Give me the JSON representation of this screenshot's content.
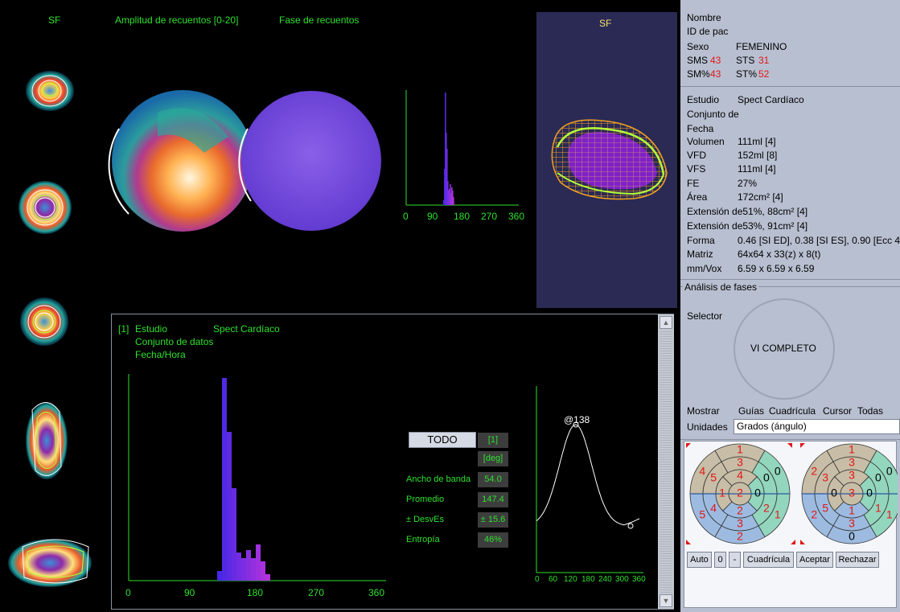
{
  "top_labels": {
    "sf": "SF",
    "amplitude": "Amplitud de recuentos [0-20]",
    "phase": "Fase de recuentos",
    "sf3d": "SF"
  },
  "top_hist": {
    "ticks": [
      "0",
      "90",
      "180",
      "270",
      "360"
    ]
  },
  "bottom_panel": {
    "study_num": "[1]",
    "study_label": "Estudio",
    "study_value": "Spect Cardíaco",
    "dataset_label": "Conjunto de datos",
    "datetime_label": "Fecha/Hora",
    "ticks": [
      "0",
      "90",
      "180",
      "270",
      "360"
    ]
  },
  "stats": {
    "todo_button": "TODO",
    "index": "[1]",
    "unit": "[deg]",
    "labels": [
      "Ancho de banda",
      "Promedio",
      "± DesvEs",
      "Entropía"
    ],
    "values": [
      "54.0",
      "147.4",
      "± 15.6",
      "46%"
    ]
  },
  "curve": {
    "peak_label": "@138",
    "ticks": [
      "0",
      "60",
      "120",
      "180",
      "240",
      "300",
      "360"
    ]
  },
  "patient": {
    "name_label": "Nombre",
    "id_label": "ID de pac",
    "sex_label": "Sexo",
    "sex_value": "FEMENINO",
    "sms_label": "SMS",
    "sms_value": "43",
    "sts_label": "STS",
    "sts_value": "31",
    "smp_label": "SM%",
    "smp_value": "43",
    "stp_label": "ST%",
    "stp_value": "52"
  },
  "study": {
    "study_label": "Estudio",
    "study_value": "Spect Cardíaco",
    "dataset_label": "Conjunto de",
    "date_label": "Fecha",
    "rows": [
      {
        "label": "Volumen",
        "value": "111ml [4]"
      },
      {
        "label": "VFD",
        "value": "152ml [8]"
      },
      {
        "label": "VFS",
        "value": "111ml [4]"
      },
      {
        "label": "FE",
        "value": "27%"
      },
      {
        "label": "Área",
        "value": "172cm² [4]"
      }
    ],
    "ext1": "Extensión de51%, 88cm² [4]",
    "ext2": "Extensión de53%, 91cm² [4]",
    "rows2": [
      {
        "label": "Forma",
        "value": "0.46 [SI ED], 0.38 [SI ES], 0.90 [Ecc 4"
      },
      {
        "label": "Matriz",
        "value": "64x64 x 33(z) x 8(t)"
      },
      {
        "label": "mm/Vox",
        "value": "6.59 x 6.59 x 6.59"
      }
    ]
  },
  "phase_analysis": {
    "title": "Análisis de fases",
    "selector_label": "Selector",
    "selector_value": "VI COMPLETO"
  },
  "options": {
    "show_label": "Mostrar",
    "guides": "Guías",
    "grid": "Cuadrícula",
    "cursor": "Cursor",
    "all": "Todas",
    "units_label": "Unidades",
    "units_value": "Grados (ángulo)"
  },
  "polar1": {
    "outer": [
      "1",
      "4",
      "5",
      "2",
      "1",
      "0"
    ],
    "mid": [
      "3",
      "5",
      "4",
      "3",
      "2",
      "0"
    ],
    "inner": [
      "4",
      "1",
      "2",
      "0"
    ],
    "apex": "2"
  },
  "polar2": {
    "outer": [
      "1",
      "2",
      "2",
      "0",
      "1",
      "0"
    ],
    "mid": [
      "3",
      "3",
      "5",
      "3",
      "1",
      "0"
    ],
    "inner": [
      "3",
      "0",
      "1",
      "0"
    ],
    "apex": "3"
  },
  "buttons": {
    "auto": "Auto",
    "zero": "0",
    "minus": "-",
    "grid": "Cuadrícula",
    "accept": "Aceptar",
    "reject": "Rechazar"
  },
  "colors": {
    "green": "#2ee02e",
    "red": "#e01818",
    "panel": "#b8bfd0",
    "tan": "#c8bda6",
    "blue": "#9dbbe0",
    "teal": "#93d6be"
  }
}
